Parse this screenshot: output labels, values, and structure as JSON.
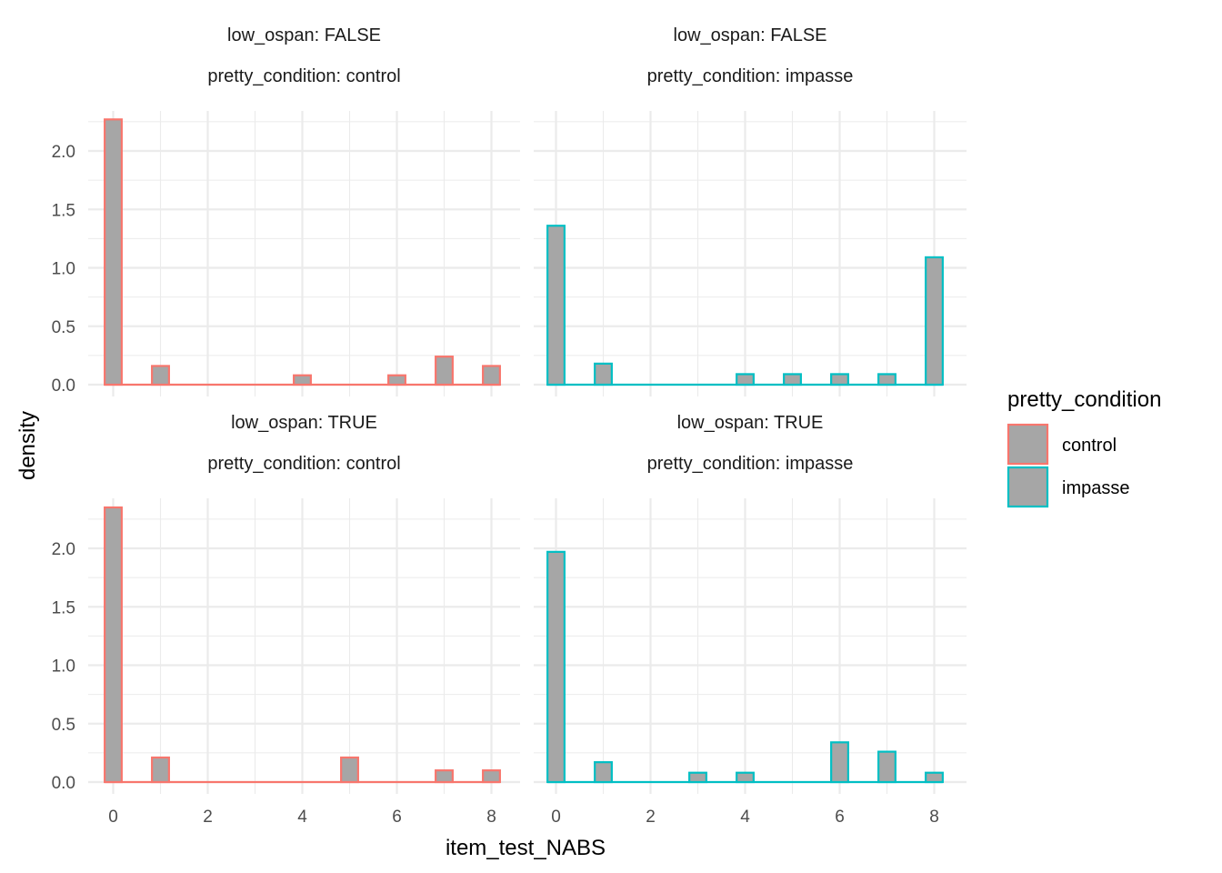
{
  "chart_data": {
    "type": "bar",
    "xlabel": "item_test_NABS",
    "ylabel": "density",
    "fill_color": "#A6A6A6",
    "legend": {
      "title": "pretty_condition",
      "position": "right",
      "entries": [
        {
          "label": "control",
          "color": "#F8766D"
        },
        {
          "label": "impasse",
          "color": "#00BFC4"
        }
      ]
    },
    "grid": true,
    "xlim": [
      -0.4,
      8.4
    ],
    "x_ticks": [
      0,
      2,
      4,
      6,
      8
    ],
    "panels": [
      {
        "strip": [
          "low_ospan: FALSE",
          "pretty_condition: control"
        ],
        "series": "control",
        "ylim": [
          0,
          2.38
        ],
        "y_ticks": [
          0.0,
          0.5,
          1.0,
          1.5,
          2.0
        ],
        "y_tick_labels": [
          "0.0",
          "0.5",
          "1.0",
          "1.5",
          "2.0"
        ],
        "bars": [
          [
            0,
            2.27
          ],
          [
            1,
            0.16
          ],
          [
            4,
            0.08
          ],
          [
            6,
            0.08
          ],
          [
            7,
            0.24
          ],
          [
            8,
            0.16
          ]
        ]
      },
      {
        "strip": [
          "low_ospan: FALSE",
          "pretty_condition: impasse"
        ],
        "series": "impasse",
        "ylim": [
          0,
          2.38
        ],
        "y_ticks": [
          0.0,
          0.5,
          1.0,
          1.5,
          2.0
        ],
        "y_tick_labels": [
          "0.0",
          "0.5",
          "1.0",
          "1.5",
          "2.0"
        ],
        "bars": [
          [
            0,
            1.36
          ],
          [
            1,
            0.18
          ],
          [
            4,
            0.09
          ],
          [
            5,
            0.09
          ],
          [
            6,
            0.09
          ],
          [
            7,
            0.09
          ],
          [
            8,
            1.09
          ]
        ]
      },
      {
        "strip": [
          "low_ospan: TRUE",
          "pretty_condition: control"
        ],
        "series": "control",
        "ylim": [
          0,
          2.38
        ],
        "y_ticks": [
          0.0,
          0.5,
          1.0,
          1.5,
          2.0
        ],
        "y_tick_labels": [
          "0.0",
          "0.5",
          "1.0",
          "1.5",
          "2.0"
        ],
        "bars": [
          [
            0,
            2.35
          ],
          [
            1,
            0.21
          ],
          [
            5,
            0.21
          ],
          [
            7,
            0.1
          ],
          [
            8,
            0.1
          ]
        ]
      },
      {
        "strip": [
          "low_ospan: TRUE",
          "pretty_condition: impasse"
        ],
        "series": "impasse",
        "ylim": [
          0,
          2.38
        ],
        "y_ticks": [
          0.0,
          0.5,
          1.0,
          1.5,
          2.0
        ],
        "y_tick_labels": [
          "0.0",
          "0.5",
          "1.0",
          "1.5",
          "2.0"
        ],
        "bars": [
          [
            0,
            1.97
          ],
          [
            1,
            0.17
          ],
          [
            3,
            0.08
          ],
          [
            4,
            0.08
          ],
          [
            6,
            0.34
          ],
          [
            7,
            0.26
          ],
          [
            8,
            0.08
          ]
        ]
      }
    ]
  }
}
